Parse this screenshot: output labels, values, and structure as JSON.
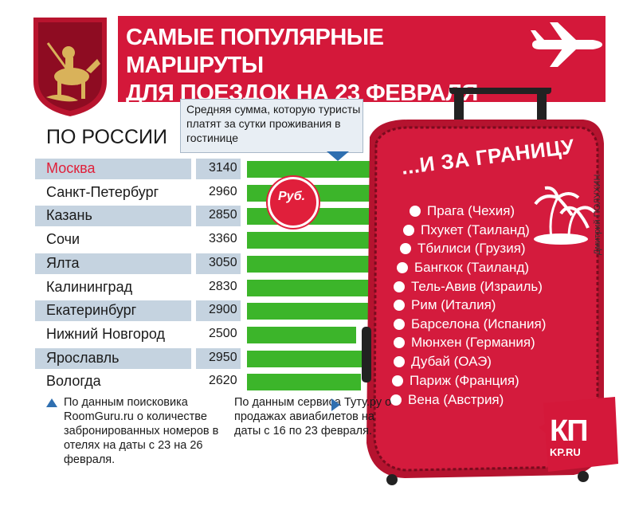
{
  "header": {
    "title_line1": "САМЫЕ ПОПУЛЯРНЫЕ МАРШРУТЫ",
    "title_line2": "ДЛЯ ПОЕЗДОК НА 23 ФЕВРАЛЯ"
  },
  "russia": {
    "heading": "ПО РОССИИ",
    "tooltip": "Средняя сумма, которую туристы платят за сутки проживания в гостинице",
    "badge": "Руб."
  },
  "chart_data": {
    "type": "bar",
    "categories": [
      "Москва",
      "Санкт-Петербург",
      "Казань",
      "Сочи",
      "Ялта",
      "Калининград",
      "Екатеринбург",
      "Нижний Новгород",
      "Ярославль",
      "Вологда"
    ],
    "values": [
      3140,
      2960,
      2850,
      3360,
      3050,
      2830,
      2900,
      2500,
      2950,
      2620
    ],
    "highlight": "Москва",
    "bar_color": "#3cb52a",
    "highlight_color": "#e0203a"
  },
  "abroad": {
    "title": "...И ЗА ГРАНИЦУ",
    "destinations": [
      "Прага (Чехия)",
      "Пхукет (Таиланд)",
      "Тбилиси (Грузия)",
      "Бангкок (Таиланд)",
      "Тель-Авив (Израиль)",
      "Рим (Италия)",
      "Барселона (Испания)",
      "Мюнхен (Германия)",
      "Дубай (ОАЭ)",
      "Париж (Франция)",
      "Вена (Австрия)"
    ]
  },
  "notes": {
    "note1": "По данным поисковика RoomGuru.ru о количестве забронированных номеров в отелях на даты с 23 на 26 февраля.",
    "note2": "По данным сервиса Туту.ру о продажах авиабилетов на даты с 16 по 23 февраля."
  },
  "credit": "Дмитрий ПОЛУХИН",
  "logo": {
    "kp": "КП",
    "site": "KP.RU"
  },
  "colors": {
    "red": "#d4183a",
    "green": "#3cb52a",
    "blue": "#2f6fb0",
    "shade": "#c5d3e0"
  }
}
